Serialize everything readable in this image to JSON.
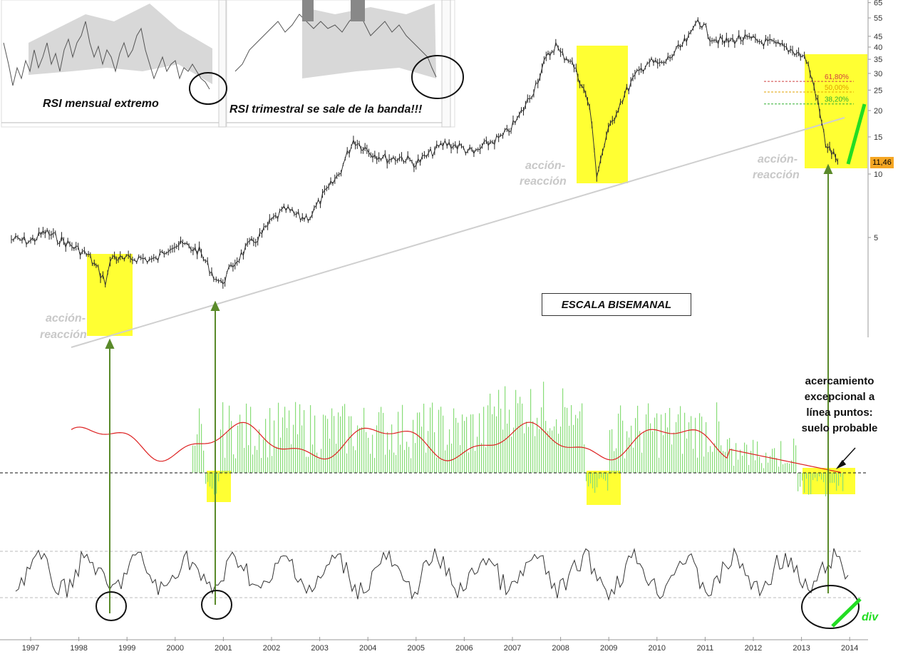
{
  "chart_data": [
    {
      "type": "line",
      "panel": "price",
      "title": "",
      "scale": "log",
      "ylabels": [
        "65",
        "55",
        "45",
        "40",
        "35",
        "30",
        "25",
        "20",
        "15",
        "10",
        "5"
      ],
      "ytick_values": [
        65,
        55,
        45,
        40,
        35,
        30,
        25,
        20,
        15,
        10,
        5
      ],
      "xlabels": [
        "1997",
        "1998",
        "1999",
        "2000",
        "2001",
        "2002",
        "2003",
        "2004",
        "2005",
        "2006",
        "2007",
        "2008",
        "2009",
        "2010",
        "2011",
        "2012",
        "2013",
        "2014"
      ],
      "series": [
        {
          "x": [
            1996.6,
            1997.0,
            1997.3,
            1997.6,
            1997.9,
            1998.2,
            1998.4,
            1998.55,
            1998.7,
            1998.9,
            1999.2,
            1999.6,
            1999.9,
            2000.2,
            2000.5,
            2000.8,
            2000.95,
            2001.2,
            2001.5,
            2001.8,
            2002.0,
            2002.3,
            2002.6,
            2002.8,
            2003.1,
            2003.4,
            2003.7,
            2003.9,
            2004.1,
            2004.4,
            2004.7,
            2005.0,
            2005.3,
            2005.6,
            2005.9,
            2006.2,
            2006.5,
            2006.8,
            2007.1,
            2007.4,
            2007.7,
            2007.9,
            2008.0,
            2008.2,
            2008.4,
            2008.6,
            2008.75,
            2008.95,
            2009.2,
            2009.5,
            2009.8,
            2010.1,
            2010.4,
            2010.7,
            2010.85,
            2011.1,
            2011.4,
            2011.7,
            2012.0,
            2012.3,
            2012.6,
            2012.9,
            2013.1,
            2013.3,
            2013.5,
            2013.75
          ],
          "y": [
            4.9,
            4.8,
            5.3,
            4.9,
            4.5,
            4.1,
            3.5,
            3.1,
            4.1,
            3.9,
            4.0,
            3.9,
            4.6,
            4.6,
            4.3,
            3.3,
            3.0,
            3.7,
            4.5,
            5.2,
            6.0,
            6.8,
            6.2,
            6.3,
            8.0,
            10.0,
            14.5,
            13.5,
            12.5,
            11.8,
            12.0,
            11.2,
            12.5,
            14.0,
            13.5,
            12.5,
            14.0,
            15.0,
            18.0,
            24.0,
            35.0,
            41.0,
            37.0,
            35.0,
            28.0,
            21.0,
            10.0,
            15.0,
            21.0,
            28.0,
            34.0,
            33.0,
            38.0,
            45.0,
            55.0,
            45.0,
            42.0,
            44.0,
            43.0,
            42.0,
            40.0,
            38.0,
            35.0,
            24.0,
            14.0,
            11.46
          ]
        }
      ],
      "last_price_label": "11,46",
      "fib_levels": [
        {
          "label": "61,80%",
          "value": 27.5,
          "color": "#d04040"
        },
        {
          "label": "50,00%",
          "value": 24.5,
          "color": "#e0a000"
        },
        {
          "label": "38,20%",
          "value": 21.5,
          "color": "#30b030"
        }
      ]
    },
    {
      "type": "bar",
      "panel": "oscillator",
      "baseline": 0
    },
    {
      "type": "line",
      "panel": "rsi",
      "ylim": [
        0,
        100
      ],
      "upper_band": 70,
      "lower_band": 30
    }
  ],
  "annotations": {
    "accion_line1": "acción-",
    "accion_line2": "reacción",
    "rsi_mensual": "RSI mensual extremo",
    "rsi_trimestral": "RSI trimestral se sale de la banda!!!",
    "escala": "ESCALA BISEMANAL",
    "note_lines": [
      "acercamiento",
      "excepcional a",
      "línea puntos:",
      "suelo probable"
    ],
    "div": "div"
  },
  "colors": {
    "highlight": "#ffff33",
    "arrow": "#5a8a2a",
    "ma_line": "#dd2222",
    "osc_bar": "#88dd77",
    "div_line": "#22dd22",
    "price_tag": "#f5a623"
  }
}
